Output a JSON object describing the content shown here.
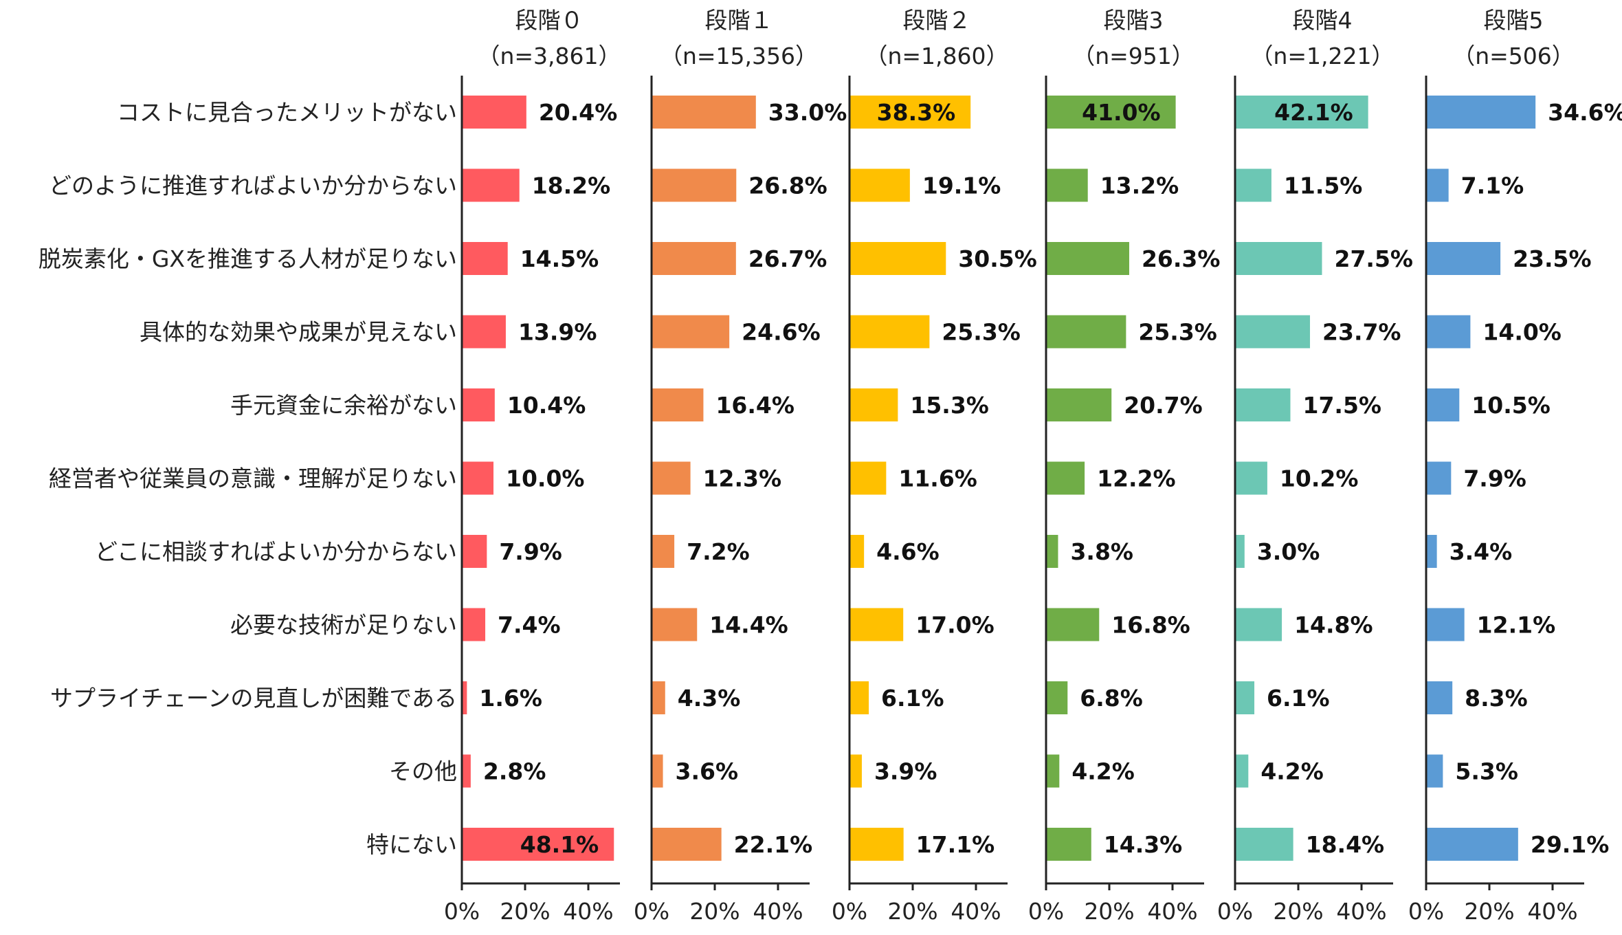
{
  "chart_data": {
    "type": "bar",
    "orientation": "horizontal",
    "categories": [
      "コストに見合ったメリットがない",
      "どのように推進すればよいか分からない",
      "脱炭素化・GXを推進する人材が足りない",
      "具体的な効果や成果が見えない",
      "手元資金に余裕がない",
      "経営者や従業員の意識・理解が足りない",
      "どこに相談すればよいか分からない",
      "必要な技術が足りない",
      "サプライチェーンの見直しが困難である",
      "その他",
      "特にない"
    ],
    "xlim": [
      0,
      50
    ],
    "x_ticks": [
      "0%",
      "20%",
      "40%"
    ],
    "x_tick_values": [
      0,
      20,
      40
    ],
    "grid": false,
    "legend": "none",
    "panels": [
      {
        "title": "段階０",
        "n": "（n=3,861）",
        "color": "#FF5A5F",
        "values": [
          20.4,
          18.2,
          14.5,
          13.9,
          10.4,
          10.0,
          7.9,
          7.4,
          1.6,
          2.8,
          48.1
        ],
        "labels": [
          "20.4%",
          "18.2%",
          "14.5%",
          "13.9%",
          "10.4%",
          "10.0%",
          "7.9%",
          "7.4%",
          "1.6%",
          "2.8%",
          "48.1%"
        ]
      },
      {
        "title": "段階１",
        "n": "（n=15,356）",
        "color": "#F08A4B",
        "values": [
          33.0,
          26.8,
          26.7,
          24.6,
          16.4,
          12.3,
          7.2,
          14.4,
          4.3,
          3.6,
          22.1
        ],
        "labels": [
          "33.0%",
          "26.8%",
          "26.7%",
          "24.6%",
          "16.4%",
          "12.3%",
          "7.2%",
          "14.4%",
          "4.3%",
          "3.6%",
          "22.1%"
        ]
      },
      {
        "title": "段階２",
        "n": "（n=1,860）",
        "color": "#FFC000",
        "values": [
          38.3,
          19.1,
          30.5,
          25.3,
          15.3,
          11.6,
          4.6,
          17.0,
          6.1,
          3.9,
          17.1
        ],
        "labels": [
          "38.3%",
          "19.1%",
          "30.5%",
          "25.3%",
          "15.3%",
          "11.6%",
          "4.6%",
          "17.0%",
          "6.1%",
          "3.9%",
          "17.1%"
        ]
      },
      {
        "title": "段階3",
        "n": "（n=951）",
        "color": "#70AD47",
        "values": [
          41.0,
          13.2,
          26.3,
          25.3,
          20.7,
          12.2,
          3.8,
          16.8,
          6.8,
          4.2,
          14.3
        ],
        "labels": [
          "41.0%",
          "13.2%",
          "26.3%",
          "25.3%",
          "20.7%",
          "12.2%",
          "3.8%",
          "16.8%",
          "6.8%",
          "4.2%",
          "14.3%"
        ]
      },
      {
        "title": "段階4",
        "n": "（n=1,221）",
        "color": "#6CC7B4",
        "values": [
          42.1,
          11.5,
          27.5,
          23.7,
          17.5,
          10.2,
          3.0,
          14.8,
          6.1,
          4.2,
          18.4
        ],
        "labels": [
          "42.1%",
          "11.5%",
          "27.5%",
          "23.7%",
          "17.5%",
          "10.2%",
          "3.0%",
          "14.8%",
          "6.1%",
          "4.2%",
          "18.4%"
        ]
      },
      {
        "title": "段階5",
        "n": "（n=506）",
        "color": "#5B9BD5",
        "values": [
          34.6,
          7.1,
          23.5,
          14.0,
          10.5,
          7.9,
          3.4,
          12.1,
          8.3,
          5.3,
          29.1
        ],
        "labels": [
          "34.6%",
          "7.1%",
          "23.5%",
          "14.0%",
          "10.5%",
          "7.9%",
          "3.4%",
          "12.1%",
          "8.3%",
          "5.3%",
          "29.1%"
        ]
      }
    ]
  }
}
